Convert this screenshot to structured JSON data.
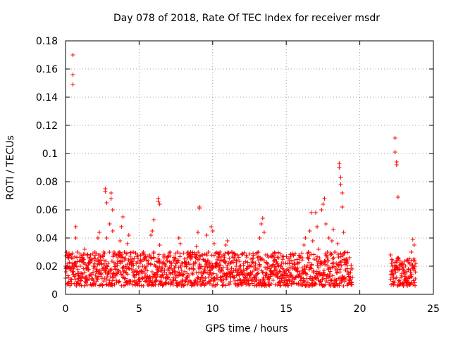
{
  "chart_data": {
    "type": "scatter",
    "title": "Day 078 of 2018, Rate Of TEC Index for receiver msdr",
    "xlabel": "GPS time / hours",
    "ylabel": "ROTI / TECUs",
    "xlim": [
      0,
      25
    ],
    "ylim": [
      0,
      0.18
    ],
    "xticks": [
      0,
      5,
      10,
      15,
      20,
      25
    ],
    "xtick_labels": [
      "0",
      "5",
      "10",
      "15",
      "20",
      "25"
    ],
    "yticks": [
      0,
      0.02,
      0.04,
      0.06,
      0.08,
      0.1,
      0.12,
      0.14,
      0.16,
      0.18
    ],
    "ytick_labels": [
      "0",
      "0.02",
      "0.04",
      "0.06",
      "0.08",
      "0.1",
      "0.12",
      "0.14",
      "0.16",
      "0.18"
    ],
    "grid": true,
    "marker": "+",
    "color": "#ff0000",
    "series": [
      {
        "name": "ROTI",
        "points": [
          [
            0.0,
            0.02
          ],
          [
            0.1,
            0.028
          ],
          [
            0.2,
            0.012
          ],
          [
            0.3,
            0.018
          ],
          [
            0.4,
            0.026
          ],
          [
            0.5,
            0.17
          ],
          [
            0.5,
            0.156
          ],
          [
            0.5,
            0.149
          ],
          [
            0.6,
            0.022
          ],
          [
            0.7,
            0.04
          ],
          [
            0.7,
            0.048
          ],
          [
            0.8,
            0.03
          ],
          [
            0.9,
            0.015
          ],
          [
            1.0,
            0.02
          ],
          [
            1.1,
            0.012
          ],
          [
            1.2,
            0.025
          ],
          [
            1.3,
            0.032
          ],
          [
            1.4,
            0.018
          ],
          [
            1.5,
            0.01
          ],
          [
            1.6,
            0.022
          ],
          [
            1.7,
            0.028
          ],
          [
            1.8,
            0.014
          ],
          [
            1.9,
            0.02
          ],
          [
            2.0,
            0.03
          ],
          [
            2.1,
            0.016
          ],
          [
            2.2,
            0.04
          ],
          [
            2.3,
            0.044
          ],
          [
            2.4,
            0.024
          ],
          [
            2.5,
            0.018
          ],
          [
            2.6,
            0.03
          ],
          [
            2.7,
            0.075
          ],
          [
            2.7,
            0.073
          ],
          [
            2.8,
            0.065
          ],
          [
            2.8,
            0.04
          ],
          [
            2.9,
            0.022
          ],
          [
            3.0,
            0.05
          ],
          [
            3.1,
            0.072
          ],
          [
            3.1,
            0.068
          ],
          [
            3.2,
            0.06
          ],
          [
            3.2,
            0.045
          ],
          [
            3.3,
            0.03
          ],
          [
            3.4,
            0.02
          ],
          [
            3.5,
            0.015
          ],
          [
            3.6,
            0.028
          ],
          [
            3.7,
            0.038
          ],
          [
            3.8,
            0.048
          ],
          [
            3.9,
            0.055
          ],
          [
            4.0,
            0.03
          ],
          [
            4.1,
            0.02
          ],
          [
            4.2,
            0.036
          ],
          [
            4.3,
            0.042
          ],
          [
            4.4,
            0.025
          ],
          [
            4.5,
            0.018
          ],
          [
            4.6,
            0.03
          ],
          [
            4.7,
            0.012
          ],
          [
            4.8,
            0.022
          ],
          [
            4.9,
            0.028
          ],
          [
            5.0,
            0.016
          ],
          [
            5.1,
            0.024
          ],
          [
            5.2,
            0.012
          ],
          [
            5.3,
            0.03
          ],
          [
            5.4,
            0.018
          ],
          [
            5.5,
            0.01
          ],
          [
            5.6,
            0.022
          ],
          [
            5.7,
            0.028
          ],
          [
            5.8,
            0.042
          ],
          [
            5.9,
            0.045
          ],
          [
            6.0,
            0.053
          ],
          [
            6.0,
            0.03
          ],
          [
            6.1,
            0.02
          ],
          [
            6.2,
            0.012
          ],
          [
            6.3,
            0.068
          ],
          [
            6.3,
            0.066
          ],
          [
            6.4,
            0.064
          ],
          [
            6.4,
            0.035
          ],
          [
            6.5,
            0.022
          ],
          [
            6.6,
            0.014
          ],
          [
            6.7,
            0.028
          ],
          [
            6.8,
            0.02
          ],
          [
            6.9,
            0.012
          ],
          [
            7.0,
            0.018
          ],
          [
            7.1,
            0.03
          ],
          [
            7.2,
            0.022
          ],
          [
            7.3,
            0.01
          ],
          [
            7.4,
            0.025
          ],
          [
            7.5,
            0.016
          ],
          [
            7.6,
            0.03
          ],
          [
            7.7,
            0.04
          ],
          [
            7.8,
            0.036
          ],
          [
            7.9,
            0.022
          ],
          [
            8.0,
            0.014
          ],
          [
            8.1,
            0.02
          ],
          [
            8.2,
            0.012
          ],
          [
            8.3,
            0.026
          ],
          [
            8.4,
            0.018
          ],
          [
            8.5,
            0.03
          ],
          [
            8.6,
            0.015
          ],
          [
            8.7,
            0.022
          ],
          [
            8.8,
            0.01
          ],
          [
            8.9,
            0.034
          ],
          [
            9.0,
            0.044
          ],
          [
            9.1,
            0.062
          ],
          [
            9.1,
            0.061
          ],
          [
            9.2,
            0.02
          ],
          [
            9.3,
            0.028
          ],
          [
            9.4,
            0.016
          ],
          [
            9.5,
            0.024
          ],
          [
            9.6,
            0.042
          ],
          [
            9.7,
            0.03
          ],
          [
            9.8,
            0.022
          ],
          [
            9.9,
            0.048
          ],
          [
            10.0,
            0.045
          ],
          [
            10.1,
            0.036
          ],
          [
            10.2,
            0.02
          ],
          [
            10.3,
            0.012
          ],
          [
            10.4,
            0.026
          ],
          [
            10.5,
            0.03
          ],
          [
            10.6,
            0.018
          ],
          [
            10.7,
            0.028
          ],
          [
            10.8,
            0.014
          ],
          [
            10.9,
            0.035
          ],
          [
            11.0,
            0.038
          ],
          [
            11.1,
            0.022
          ],
          [
            11.2,
            0.016
          ],
          [
            11.3,
            0.03
          ],
          [
            11.4,
            0.024
          ],
          [
            11.5,
            0.012
          ],
          [
            11.6,
            0.02
          ],
          [
            11.7,
            0.028
          ],
          [
            11.8,
            0.014
          ],
          [
            11.9,
            0.01
          ],
          [
            12.0,
            0.016
          ],
          [
            12.1,
            0.022
          ],
          [
            12.2,
            0.012
          ],
          [
            12.3,
            0.018
          ],
          [
            12.4,
            0.01
          ],
          [
            12.5,
            0.014
          ],
          [
            12.6,
            0.02
          ],
          [
            12.7,
            0.016
          ],
          [
            12.8,
            0.012
          ],
          [
            12.9,
            0.018
          ],
          [
            13.0,
            0.01
          ],
          [
            13.1,
            0.03
          ],
          [
            13.2,
            0.04
          ],
          [
            13.3,
            0.05
          ],
          [
            13.4,
            0.054
          ],
          [
            13.5,
            0.044
          ],
          [
            13.6,
            0.028
          ],
          [
            13.7,
            0.018
          ],
          [
            13.8,
            0.012
          ],
          [
            13.9,
            0.02
          ],
          [
            14.0,
            0.016
          ],
          [
            14.1,
            0.01
          ],
          [
            14.2,
            0.024
          ],
          [
            14.3,
            0.018
          ],
          [
            14.4,
            0.012
          ],
          [
            14.5,
            0.026
          ],
          [
            14.6,
            0.02
          ],
          [
            14.7,
            0.014
          ],
          [
            14.8,
            0.022
          ],
          [
            14.9,
            0.016
          ],
          [
            15.0,
            0.01
          ],
          [
            15.1,
            0.018
          ],
          [
            15.2,
            0.024
          ],
          [
            15.3,
            0.014
          ],
          [
            15.4,
            0.02
          ],
          [
            15.5,
            0.028
          ],
          [
            15.6,
            0.012
          ],
          [
            15.7,
            0.018
          ],
          [
            15.8,
            0.022
          ],
          [
            15.9,
            0.016
          ],
          [
            16.0,
            0.01
          ],
          [
            16.1,
            0.026
          ],
          [
            16.2,
            0.035
          ],
          [
            16.3,
            0.04
          ],
          [
            16.4,
            0.02
          ],
          [
            16.5,
            0.03
          ],
          [
            16.6,
            0.045
          ],
          [
            16.7,
            0.058
          ],
          [
            16.8,
            0.038
          ],
          [
            16.9,
            0.025
          ],
          [
            17.0,
            0.058
          ],
          [
            17.1,
            0.048
          ],
          [
            17.2,
            0.032
          ],
          [
            17.3,
            0.022
          ],
          [
            17.4,
            0.06
          ],
          [
            17.5,
            0.064
          ],
          [
            17.6,
            0.068
          ],
          [
            17.7,
            0.05
          ],
          [
            17.8,
            0.03
          ],
          [
            17.9,
            0.04
          ],
          [
            18.0,
            0.028
          ],
          [
            18.1,
            0.038
          ],
          [
            18.2,
            0.046
          ],
          [
            18.3,
            0.03
          ],
          [
            18.4,
            0.022
          ],
          [
            18.5,
            0.036
          ],
          [
            18.6,
            0.093
          ],
          [
            18.6,
            0.09
          ],
          [
            18.7,
            0.083
          ],
          [
            18.7,
            0.078
          ],
          [
            18.8,
            0.072
          ],
          [
            18.8,
            0.062
          ],
          [
            18.9,
            0.044
          ],
          [
            19.0,
            0.03
          ],
          [
            19.1,
            0.022
          ],
          [
            19.2,
            0.016
          ],
          [
            19.3,
            0.026
          ],
          [
            19.4,
            0.018
          ],
          [
            19.5,
            0.012
          ],
          [
            22.1,
            0.028
          ],
          [
            22.2,
            0.02
          ],
          [
            22.3,
            0.012
          ],
          [
            22.4,
            0.111
          ],
          [
            22.4,
            0.101
          ],
          [
            22.5,
            0.094
          ],
          [
            22.5,
            0.092
          ],
          [
            22.6,
            0.069
          ],
          [
            22.6,
            0.026
          ],
          [
            22.7,
            0.018
          ],
          [
            22.8,
            0.012
          ],
          [
            22.9,
            0.022
          ],
          [
            23.0,
            0.016
          ],
          [
            23.1,
            0.01
          ],
          [
            23.2,
            0.024
          ],
          [
            23.3,
            0.018
          ],
          [
            23.4,
            0.012
          ],
          [
            23.5,
            0.03
          ],
          [
            23.6,
            0.039
          ],
          [
            23.7,
            0.035
          ],
          [
            23.8,
            0.022
          ]
        ]
      }
    ],
    "dense_bands": [
      {
        "x": [
          0.0,
          19.5
        ],
        "y": [
          0.006,
          0.03
        ]
      },
      {
        "x": [
          22.1,
          23.8
        ],
        "y": [
          0.006,
          0.026
        ]
      }
    ]
  }
}
